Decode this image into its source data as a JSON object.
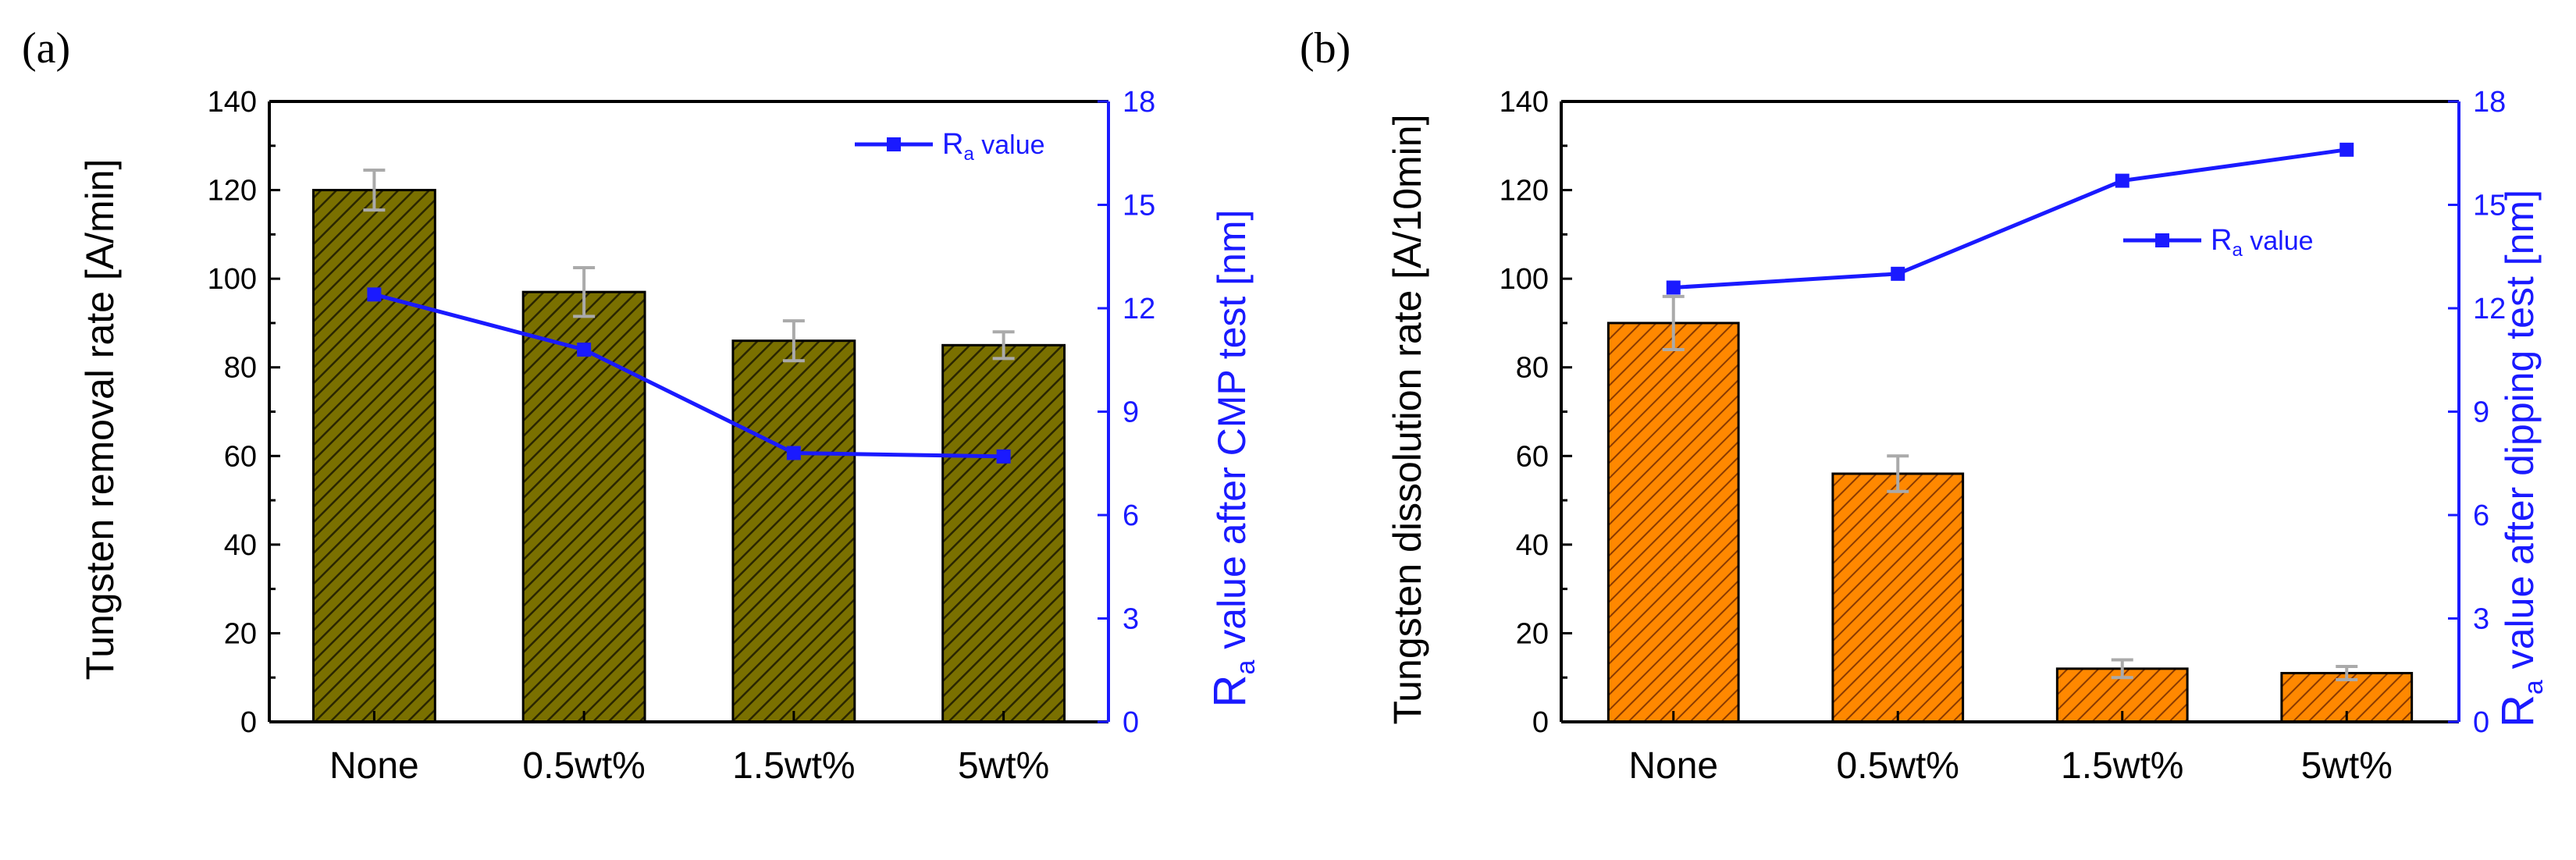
{
  "colors": {
    "bar_a": "#7a7000",
    "bar_a_hatch": "#2a2600",
    "bar_b": "#ff8800",
    "bar_b_hatch": "#8a3a00",
    "line": "#1a1aff",
    "error": "#aaaaaa"
  },
  "chart_data": [
    {
      "type": "bar",
      "panel": "(a)",
      "categories": [
        "None",
        "0.5wt%",
        "1.5wt%",
        "5wt%"
      ],
      "values": [
        120,
        97,
        86,
        85
      ],
      "errors": [
        4.5,
        5.5,
        4.5,
        3
      ],
      "ylabel": "Tungsten removal rate [A/min]",
      "ylim": [
        0,
        140
      ],
      "yticks": [
        0,
        20,
        40,
        60,
        80,
        100,
        120,
        140
      ],
      "y2": {
        "label_main": "R",
        "label_sub": "a",
        "label_rest": " value after CMP test [nm]",
        "lim": [
          0,
          18
        ],
        "ticks": [
          0,
          3,
          6,
          9,
          12,
          15,
          18
        ],
        "values": [
          12.4,
          10.8,
          7.8,
          7.7
        ],
        "legend_main": "R",
        "legend_sub": "a",
        "legend_rest": " value"
      }
    },
    {
      "type": "bar",
      "panel": "(b)",
      "categories": [
        "None",
        "0.5wt%",
        "1.5wt%",
        "5wt%"
      ],
      "values": [
        90,
        56,
        12,
        11
      ],
      "errors": [
        6,
        4,
        2,
        1.5
      ],
      "ylabel": "Tungsten dissolution rate [A/10min]",
      "ylim": [
        0,
        140
      ],
      "yticks": [
        0,
        20,
        40,
        60,
        80,
        100,
        120,
        140
      ],
      "y2": {
        "label_main": "R",
        "label_sub": "a",
        "label_rest": " value after dipping test [nm]",
        "lim": [
          0,
          18
        ],
        "ticks": [
          0,
          3,
          6,
          9,
          12,
          15,
          18
        ],
        "values": [
          12.6,
          13.0,
          15.7,
          16.6
        ],
        "legend_main": "R",
        "legend_sub": "a",
        "legend_rest": " value"
      }
    }
  ]
}
